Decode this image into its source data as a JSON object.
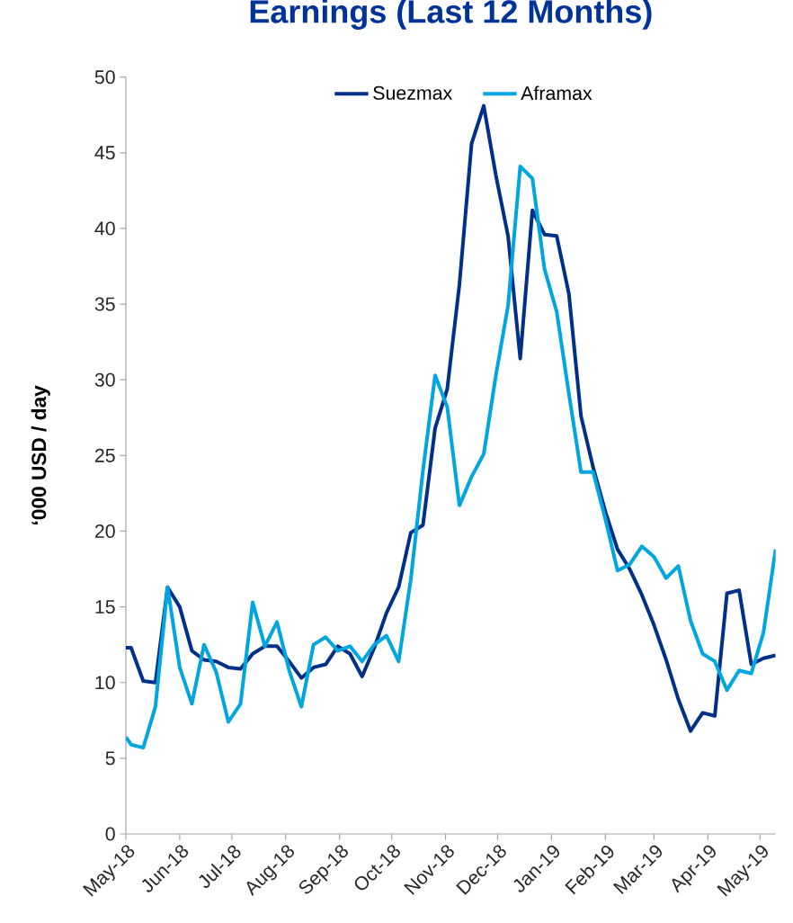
{
  "chart_data": {
    "type": "line",
    "title": "Earnings (Last 12 Months)",
    "ylabel": "‘000 USD / day",
    "x": [
      "2018-05-01",
      "2018-05-04",
      "2018-05-11",
      "2018-05-18",
      "2018-05-25",
      "2018-06-01",
      "2018-06-08",
      "2018-06-15",
      "2018-06-22",
      "2018-06-29",
      "2018-07-06",
      "2018-07-13",
      "2018-07-20",
      "2018-07-27",
      "2018-08-03",
      "2018-08-10",
      "2018-08-17",
      "2018-08-24",
      "2018-08-31",
      "2018-09-07",
      "2018-09-14",
      "2018-09-21",
      "2018-09-28",
      "2018-10-05",
      "2018-10-12",
      "2018-10-19",
      "2018-10-26",
      "2018-11-02",
      "2018-11-09",
      "2018-11-16",
      "2018-11-23",
      "2018-11-30",
      "2018-12-07",
      "2018-12-14",
      "2018-12-21",
      "2018-12-28",
      "2019-01-04",
      "2019-01-11",
      "2019-01-18",
      "2019-01-25",
      "2019-02-01",
      "2019-02-08",
      "2019-02-15",
      "2019-02-22",
      "2019-03-01",
      "2019-03-08",
      "2019-03-15",
      "2019-03-22",
      "2019-03-29",
      "2019-04-05",
      "2019-04-12",
      "2019-04-19",
      "2019-04-26",
      "2019-05-03",
      "2019-05-10"
    ],
    "series": [
      {
        "name": "Suezmax",
        "color": "#003087",
        "values": [
          12.3,
          12.3,
          10.1,
          10.0,
          16.3,
          15.0,
          12.1,
          11.5,
          11.4,
          11.0,
          10.9,
          11.9,
          12.4,
          12.4,
          11.4,
          10.3,
          11.0,
          11.2,
          12.4,
          11.9,
          10.4,
          12.3,
          14.6,
          16.3,
          19.9,
          20.4,
          26.8,
          29.4,
          36.3,
          45.6,
          48.1,
          43.5,
          39.5,
          31.4,
          41.2,
          39.6,
          39.5,
          35.7,
          27.6,
          24.2,
          21.3,
          18.8,
          17.5,
          15.8,
          13.8,
          11.5,
          8.9,
          6.8,
          8.0,
          7.8,
          15.9,
          16.1,
          11.2,
          11.6,
          11.8
        ]
      },
      {
        "name": "Aframax",
        "color": "#00a6e0",
        "values": [
          6.4,
          5.9,
          5.7,
          8.4,
          16.3,
          11.0,
          8.6,
          12.5,
          10.7,
          7.4,
          8.6,
          15.3,
          12.4,
          14.0,
          10.8,
          8.4,
          12.5,
          13.0,
          12.1,
          12.4,
          11.4,
          12.5,
          13.1,
          11.4,
          16.8,
          24.0,
          30.3,
          28.2,
          21.7,
          23.6,
          25.1,
          30.3,
          34.9,
          44.1,
          43.3,
          37.3,
          34.5,
          29.1,
          23.9,
          23.9,
          20.8,
          17.4,
          17.8,
          19.0,
          18.3,
          16.9,
          17.7,
          14.1,
          11.9,
          11.4,
          9.5,
          10.8,
          10.6,
          13.3,
          18.8
        ]
      }
    ],
    "xlim": [
      "2018-05-01",
      "2019-05-10"
    ],
    "xticks": [
      {
        "value": "2018-05-01",
        "label": "May-18"
      },
      {
        "value": "2018-06-01",
        "label": "Jun-18"
      },
      {
        "value": "2018-07-01",
        "label": "Jul-18"
      },
      {
        "value": "2018-08-01",
        "label": "Aug-18"
      },
      {
        "value": "2018-09-01",
        "label": "Sep-18"
      },
      {
        "value": "2018-10-01",
        "label": "Oct-18"
      },
      {
        "value": "2018-11-01",
        "label": "Nov-18"
      },
      {
        "value": "2018-12-01",
        "label": "Dec-18"
      },
      {
        "value": "2019-01-01",
        "label": "Jan-19"
      },
      {
        "value": "2019-02-01",
        "label": "Feb-19"
      },
      {
        "value": "2019-03-01",
        "label": "Mar-19"
      },
      {
        "value": "2019-04-01",
        "label": "Apr-19"
      },
      {
        "value": "2019-05-01",
        "label": "May-19"
      }
    ],
    "ylim": [
      0,
      50
    ],
    "yticks": [
      0,
      5,
      10,
      15,
      20,
      25,
      30,
      35,
      40,
      45,
      50
    ],
    "legend": "top",
    "grid": false,
    "marker": "none",
    "line_style": "solid"
  }
}
